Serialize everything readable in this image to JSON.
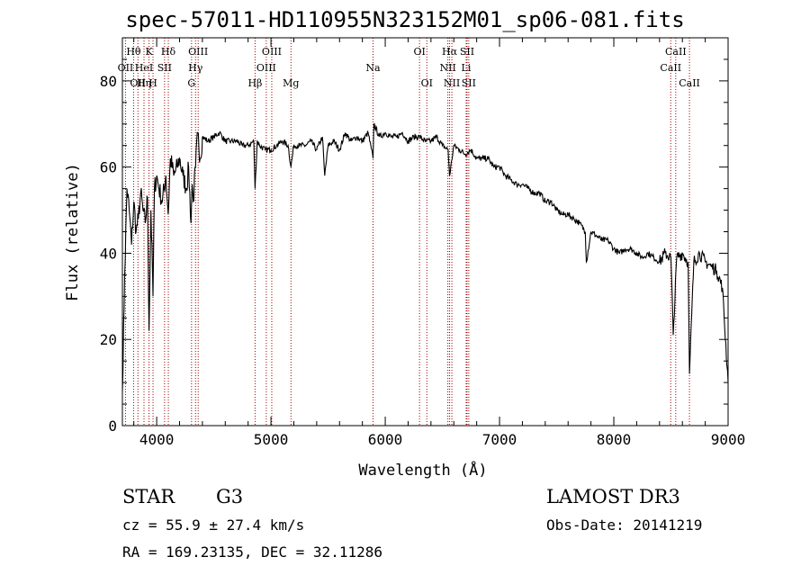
{
  "chart_data": {
    "type": "line",
    "title": "spec-57011-HD110955N323152M01_sp06-081.fits",
    "xlabel": "Wavelength (Å)",
    "ylabel": "Flux (relative)",
    "xlim": [
      3700,
      9000
    ],
    "ylim": [
      0,
      90
    ],
    "xticks": [
      4000,
      5000,
      6000,
      7000,
      8000,
      9000
    ],
    "yticks": [
      0,
      20,
      40,
      60,
      80
    ],
    "grid": false,
    "series": [
      {
        "name": "spectrum",
        "x": [
          3700,
          3720,
          3740,
          3760,
          3780,
          3800,
          3820,
          3840,
          3860,
          3880,
          3900,
          3920,
          3933,
          3950,
          3968,
          3980,
          4000,
          4020,
          4050,
          4080,
          4101,
          4120,
          4150,
          4180,
          4200,
          4230,
          4260,
          4280,
          4300,
          4310,
          4320,
          4340,
          4360,
          4380,
          4400,
          4450,
          4500,
          4550,
          4600,
          4650,
          4700,
          4750,
          4800,
          4850,
          4861,
          4880,
          4900,
          4950,
          5000,
          5050,
          5100,
          5150,
          5175,
          5200,
          5250,
          5300,
          5350,
          5400,
          5450,
          5470,
          5500,
          5550,
          5600,
          5650,
          5700,
          5750,
          5800,
          5850,
          5893,
          5900,
          5950,
          6000,
          6050,
          6100,
          6150,
          6200,
          6250,
          6300,
          6350,
          6400,
          6450,
          6500,
          6550,
          6563,
          6600,
          6650,
          6700,
          6750,
          6800,
          6850,
          6900,
          6950,
          7000,
          7050,
          7100,
          7150,
          7200,
          7250,
          7300,
          7350,
          7400,
          7450,
          7500,
          7550,
          7600,
          7650,
          7700,
          7750,
          7760,
          7800,
          7850,
          7900,
          7950,
          8000,
          8050,
          8100,
          8150,
          8200,
          8250,
          8300,
          8350,
          8400,
          8450,
          8500,
          8520,
          8550,
          8600,
          8650,
          8662,
          8700,
          8750,
          8800,
          8850,
          8900,
          8950,
          9000
        ],
        "values": [
          8,
          35,
          55,
          50,
          42,
          52,
          45,
          48,
          54,
          50,
          47,
          53,
          22,
          50,
          30,
          55,
          58,
          55,
          52,
          58,
          49,
          62,
          58,
          60,
          62,
          58,
          55,
          60,
          47,
          56,
          52,
          60,
          68,
          62,
          67,
          66,
          67,
          68,
          66,
          66,
          66,
          65,
          65,
          66,
          55,
          66,
          65,
          64,
          64,
          65,
          66,
          65,
          60,
          65,
          65,
          65,
          66,
          64,
          67,
          58,
          65,
          66,
          64,
          68,
          66,
          67,
          66,
          68,
          62,
          70,
          67,
          68,
          67,
          67,
          68,
          66,
          67,
          67,
          66,
          66,
          67,
          65,
          64,
          58,
          65,
          64,
          63,
          64,
          62,
          62,
          62,
          60,
          60,
          58,
          57,
          56,
          56,
          55,
          54,
          54,
          52,
          52,
          50,
          49,
          49,
          48,
          47,
          45,
          38,
          45,
          44,
          43,
          43,
          41,
          40,
          41,
          41,
          40,
          39,
          40,
          39,
          38,
          40,
          39,
          21,
          39,
          40,
          38,
          12,
          38,
          40,
          38,
          37,
          36,
          32,
          10
        ]
      }
    ],
    "annotations": [
      {
        "label": "OII",
        "x": 3727,
        "row": 2
      },
      {
        "label": "Hθ",
        "x": 3798,
        "row": 1
      },
      {
        "label": "OII",
        "x": 3836,
        "row": 3
      },
      {
        "label": "Hη",
        "x": 3889,
        "row": 3
      },
      {
        "label": "HeI",
        "x": 3889,
        "row": 2
      },
      {
        "label": "K",
        "x": 3933,
        "row": 1
      },
      {
        "label": "H",
        "x": 3968,
        "row": 3
      },
      {
        "label": "SII",
        "x": 4069,
        "row": 2
      },
      {
        "label": "Hδ",
        "x": 4102,
        "row": 1
      },
      {
        "label": "G",
        "x": 4305,
        "row": 3
      },
      {
        "label": "Hγ",
        "x": 4340,
        "row": 2
      },
      {
        "label": "OIII",
        "x": 4363,
        "row": 1
      },
      {
        "label": "Hβ",
        "x": 4861,
        "row": 3
      },
      {
        "label": "OIII",
        "x": 4959,
        "row": 2
      },
      {
        "label": "OIII",
        "x": 5007,
        "row": 1
      },
      {
        "label": "Mg",
        "x": 5175,
        "row": 3
      },
      {
        "label": "Na",
        "x": 5893,
        "row": 2
      },
      {
        "label": "OI",
        "x": 6300,
        "row": 1
      },
      {
        "label": "OI",
        "x": 6364,
        "row": 3
      },
      {
        "label": "NII",
        "x": 6548,
        "row": 2
      },
      {
        "label": "Hα",
        "x": 6563,
        "row": 1
      },
      {
        "label": "NII",
        "x": 6583,
        "row": 3
      },
      {
        "label": "SII",
        "x": 6716,
        "row": 1
      },
      {
        "label": "Li",
        "x": 6708,
        "row": 2
      },
      {
        "label": "SII",
        "x": 6731,
        "row": 3
      },
      {
        "label": "CaII",
        "x": 8498,
        "row": 2
      },
      {
        "label": "CaII",
        "x": 8542,
        "row": 1
      },
      {
        "label": "CaII",
        "x": 8662,
        "row": 3
      }
    ]
  },
  "info": {
    "class": "STAR",
    "subclass": "G3",
    "survey": "LAMOST DR3",
    "cz": "cz = 55.9 ± 27.4 km/s",
    "obs_date": "Obs-Date: 20141219",
    "coords": "RA = 169.23135, DEC =  32.11286"
  }
}
